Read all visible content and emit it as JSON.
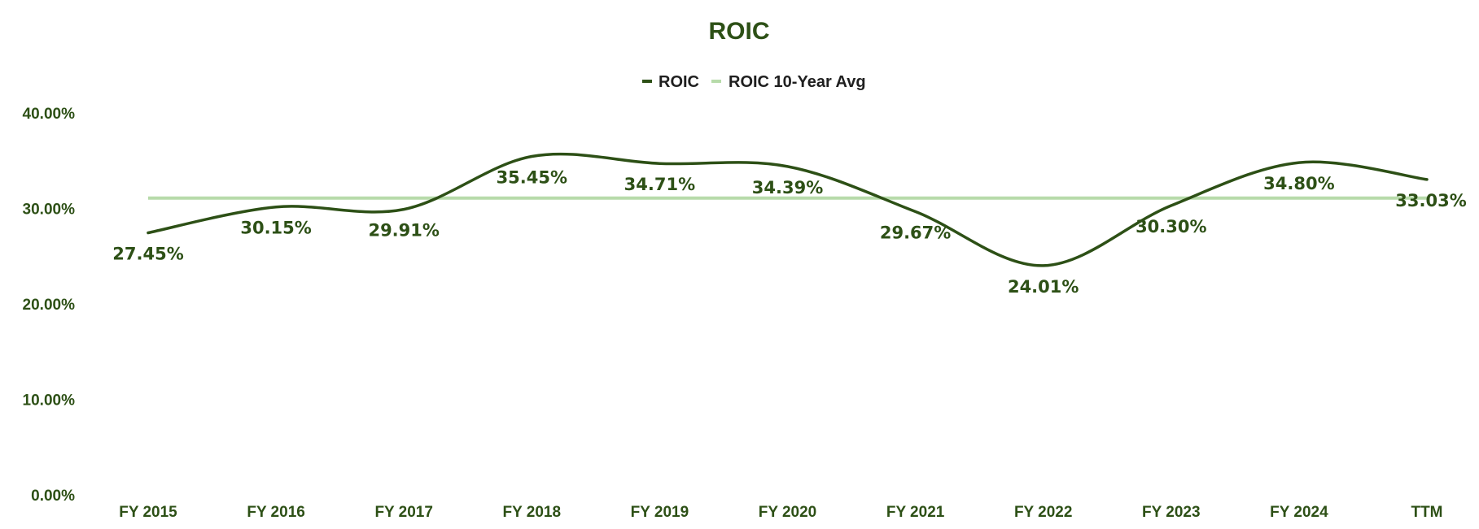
{
  "chart_data": {
    "type": "line",
    "title": "ROIC",
    "categories": [
      "FY 2015",
      "FY 2016",
      "FY 2017",
      "FY 2018",
      "FY 2019",
      "FY 2020",
      "FY 2021",
      "FY 2022",
      "FY 2023",
      "FY 2024",
      "TTM"
    ],
    "series": [
      {
        "name": "ROIC",
        "values": [
          27.45,
          30.15,
          29.91,
          35.45,
          34.71,
          34.39,
          29.67,
          24.01,
          30.3,
          34.8,
          33.03
        ],
        "labels": [
          "27.45%",
          "30.15%",
          "29.91%",
          "35.45%",
          "34.71%",
          "34.39%",
          "29.67%",
          "24.01%",
          "30.30%",
          "34.80%",
          "33.03%"
        ],
        "color": "#2d5016",
        "smooth": true
      },
      {
        "name": "ROIC 10-Year Avg",
        "values": [
          31.09,
          31.09,
          31.09,
          31.09,
          31.09,
          31.09,
          31.09,
          31.09,
          31.09,
          31.09,
          31.09
        ],
        "color": "#b7dbaa"
      }
    ],
    "ylim": [
      0,
      40
    ],
    "yticks": [
      "0.00%",
      "10.00%",
      "20.00%",
      "30.00%",
      "40.00%"
    ],
    "grid": false,
    "legend": "top-center",
    "colors": {
      "title": "#2d5016",
      "axis_text": "#2d5016",
      "legend_text": "#1f1f1f"
    }
  }
}
